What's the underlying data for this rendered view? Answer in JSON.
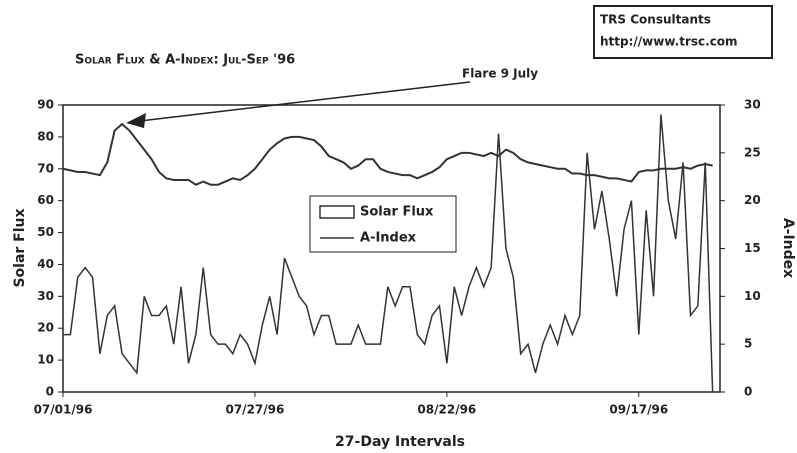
{
  "chart_data": {
    "type": "line",
    "title": "Solar Flux & A-Index: Jul-Sep '96",
    "xlabel": "27-Day Intervals",
    "ylabel": "Solar Flux",
    "y2label": "A-Index",
    "annotation": "Flare 9 July",
    "credit": [
      "TRS Consultants",
      "http://www.trsc.com"
    ],
    "x": [
      0,
      1,
      2,
      3,
      4,
      5,
      6,
      7,
      8,
      9,
      10,
      11,
      12,
      13,
      14,
      15,
      16,
      17,
      18,
      19,
      20,
      21,
      22,
      23,
      24,
      25,
      26,
      27,
      28,
      29,
      30,
      31,
      32,
      33,
      34,
      35,
      36,
      37,
      38,
      39,
      40,
      41,
      42,
      43,
      44,
      45,
      46,
      47,
      48,
      49,
      50,
      51,
      52,
      53,
      54,
      55,
      56,
      57,
      58,
      59,
      60,
      61,
      62,
      63,
      64,
      65,
      66,
      67,
      68,
      69,
      70,
      71,
      72,
      73,
      74,
      75,
      76,
      77,
      78,
      79,
      80,
      81,
      82,
      83,
      84,
      85,
      86,
      87,
      88
    ],
    "xlim": [
      0,
      89
    ],
    "xticks": [
      {
        "value": 0,
        "label": "07/01/96"
      },
      {
        "value": 26,
        "label": "07/27/96"
      },
      {
        "value": 52,
        "label": "08/22/96"
      },
      {
        "value": 78,
        "label": "09/17/96"
      }
    ],
    "ylim": [
      0,
      90
    ],
    "yticks": [
      0,
      10,
      20,
      30,
      40,
      50,
      60,
      70,
      80,
      90
    ],
    "y2lim": [
      0,
      30
    ],
    "y2ticks": [
      0,
      5,
      10,
      15,
      20,
      25,
      30
    ],
    "series": [
      {
        "name": "Solar Flux",
        "color": "#333333",
        "values": [
          70,
          69.5,
          69,
          69,
          68.5,
          68,
          72,
          82,
          84,
          82,
          79,
          76,
          73,
          69,
          67,
          66.5,
          66.5,
          66.5,
          65,
          66,
          65,
          65,
          66,
          67,
          66.5,
          68,
          70,
          73,
          76,
          78,
          79.5,
          80,
          80,
          79.5,
          79,
          77,
          74,
          73,
          72,
          70,
          71,
          73,
          73,
          70,
          69,
          68.5,
          68,
          68,
          67,
          68,
          69,
          70.5,
          73,
          74,
          75,
          75,
          74.5,
          74,
          75,
          74,
          76,
          75,
          73,
          72,
          71.5,
          71,
          70.5,
          70,
          70,
          68.5,
          68.5,
          68,
          68,
          67.5,
          67,
          67,
          66.5,
          66,
          69,
          69.5,
          69.5,
          70,
          70,
          70,
          70.5,
          70,
          71,
          71.5,
          71
        ]
      },
      {
        "name": "A-Index",
        "color": "#333333",
        "axis": "y2",
        "values": [
          6,
          6,
          12,
          13,
          12,
          4,
          8,
          9,
          4,
          3,
          2,
          10,
          8,
          8,
          9,
          5,
          11,
          3,
          6,
          13,
          6,
          5,
          5,
          4,
          6,
          5,
          3,
          7,
          10,
          6,
          14,
          12,
          10,
          9,
          6,
          8,
          8,
          5,
          5,
          5,
          7,
          5,
          5,
          5,
          11,
          9,
          11,
          11,
          6,
          5,
          8,
          9,
          3,
          11,
          8,
          11,
          13,
          11,
          13,
          27,
          15,
          12,
          4,
          5,
          2,
          5,
          7,
          5,
          8,
          6,
          8,
          25,
          17,
          21,
          16,
          10,
          17,
          20,
          6,
          19,
          10,
          29,
          20,
          16,
          24,
          8,
          9,
          24,
          0
        ]
      }
    ]
  }
}
